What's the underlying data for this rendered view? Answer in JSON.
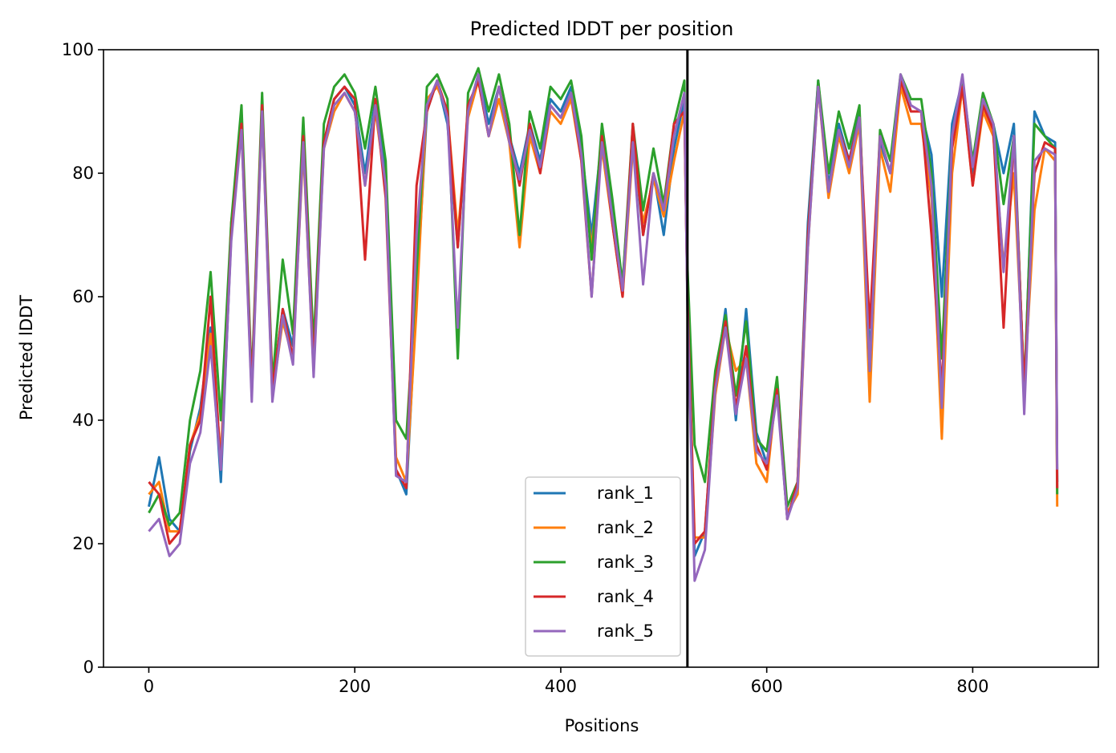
{
  "chart_data": {
    "type": "line",
    "title": "Predicted lDDT per position",
    "xlabel": "Positions",
    "ylabel": "Predicted lDDT",
    "xlim": [
      -44,
      922
    ],
    "ylim": [
      0,
      100
    ],
    "xticks": [
      0,
      200,
      400,
      600,
      800
    ],
    "yticks": [
      0,
      20,
      40,
      60,
      80,
      100
    ],
    "legend_position": "lower-center",
    "grid": false,
    "chain_break": 523,
    "x": [
      0,
      10,
      20,
      30,
      40,
      50,
      60,
      70,
      80,
      90,
      100,
      110,
      120,
      130,
      140,
      150,
      160,
      170,
      180,
      190,
      200,
      210,
      220,
      230,
      240,
      250,
      260,
      270,
      280,
      290,
      300,
      310,
      320,
      330,
      340,
      350,
      360,
      370,
      380,
      390,
      400,
      410,
      420,
      430,
      440,
      450,
      460,
      470,
      480,
      490,
      500,
      510,
      520,
      523,
      530,
      540,
      550,
      560,
      570,
      580,
      590,
      600,
      610,
      620,
      630,
      640,
      650,
      660,
      670,
      680,
      690,
      700,
      710,
      720,
      730,
      740,
      750,
      760,
      770,
      780,
      790,
      800,
      810,
      820,
      830,
      840,
      850,
      860,
      870,
      880,
      882
    ],
    "series": [
      {
        "name": "rank_1",
        "color": "#1f77b4",
        "values": [
          26,
          34,
          24,
          22,
          35,
          42,
          55,
          30,
          70,
          88,
          45,
          91,
          45,
          58,
          52,
          86,
          50,
          85,
          92,
          94,
          91,
          80,
          92,
          80,
          32,
          28,
          60,
          90,
          95,
          88,
          68,
          90,
          96,
          88,
          94,
          86,
          80,
          88,
          82,
          92,
          90,
          94,
          84,
          70,
          86,
          74,
          62,
          86,
          70,
          80,
          70,
          84,
          92,
          60,
          18,
          22,
          46,
          58,
          40,
          58,
          38,
          33,
          45,
          24,
          30,
          72,
          95,
          78,
          88,
          82,
          90,
          50,
          85,
          80,
          95,
          90,
          90,
          83,
          60,
          88,
          95,
          80,
          92,
          88,
          80,
          88,
          44,
          90,
          86,
          85,
          30
        ]
      },
      {
        "name": "rank_2",
        "color": "#ff7f0e",
        "values": [
          28,
          30,
          22,
          22,
          36,
          41,
          54,
          34,
          72,
          87,
          44,
          90,
          44,
          56,
          50,
          84,
          48,
          84,
          90,
          93,
          90,
          78,
          90,
          78,
          34,
          30,
          58,
          92,
          94,
          90,
          70,
          89,
          95,
          86,
          92,
          85,
          68,
          86,
          80,
          90,
          88,
          92,
          82,
          68,
          84,
          72,
          60,
          84,
          72,
          79,
          73,
          82,
          90,
          60,
          21,
          21,
          44,
          55,
          48,
          50,
          33,
          30,
          46,
          25,
          28,
          68,
          94,
          76,
          86,
          80,
          88,
          43,
          84,
          77,
          94,
          88,
          88,
          76,
          37,
          80,
          94,
          78,
          90,
          86,
          65,
          80,
          45,
          74,
          84,
          82,
          26
        ]
      },
      {
        "name": "rank_3",
        "color": "#2ca02c",
        "values": [
          25,
          28,
          23,
          25,
          40,
          48,
          64,
          40,
          72,
          91,
          46,
          93,
          46,
          66,
          54,
          89,
          52,
          88,
          94,
          96,
          93,
          84,
          94,
          82,
          40,
          37,
          64,
          94,
          96,
          92,
          50,
          93,
          97,
          90,
          96,
          88,
          70,
          90,
          84,
          94,
          92,
          95,
          86,
          66,
          88,
          76,
          62,
          88,
          74,
          84,
          75,
          88,
          95,
          65,
          36,
          30,
          48,
          57,
          44,
          56,
          37,
          35,
          47,
          26,
          30,
          70,
          95,
          80,
          90,
          84,
          91,
          48,
          87,
          82,
          96,
          92,
          92,
          80,
          50,
          86,
          95,
          82,
          93,
          88,
          75,
          86,
          45,
          88,
          86,
          84,
          28
        ]
      },
      {
        "name": "rank_4",
        "color": "#d62728",
        "values": [
          30,
          28,
          20,
          22,
          36,
          40,
          60,
          32,
          70,
          88,
          45,
          91,
          45,
          58,
          50,
          86,
          49,
          85,
          92,
          94,
          92,
          66,
          92,
          76,
          32,
          29,
          78,
          90,
          95,
          90,
          68,
          91,
          95,
          86,
          94,
          86,
          78,
          88,
          80,
          91,
          89,
          93,
          82,
          60,
          86,
          72,
          60,
          88,
          70,
          80,
          74,
          88,
          90,
          60,
          20,
          22,
          46,
          56,
          42,
          52,
          36,
          32,
          45,
          24,
          30,
          70,
          94,
          77,
          87,
          82,
          89,
          55,
          86,
          80,
          95,
          90,
          90,
          70,
          45,
          84,
          94,
          78,
          91,
          87,
          55,
          86,
          45,
          80,
          85,
          84,
          29
        ]
      },
      {
        "name": "rank_5",
        "color": "#9467bd",
        "values": [
          22,
          24,
          18,
          20,
          33,
          38,
          52,
          32,
          69,
          87,
          43,
          90,
          43,
          57,
          49,
          85,
          47,
          84,
          91,
          93,
          90,
          78,
          91,
          78,
          31,
          30,
          70,
          91,
          95,
          89,
          55,
          90,
          96,
          86,
          94,
          85,
          79,
          87,
          81,
          91,
          89,
          93,
          83,
          60,
          85,
          73,
          61,
          85,
          62,
          80,
          74,
          86,
          93,
          58,
          14,
          19,
          45,
          55,
          41,
          50,
          35,
          33,
          44,
          24,
          29,
          68,
          94,
          77,
          87,
          81,
          89,
          48,
          86,
          80,
          96,
          91,
          90,
          78,
          42,
          86,
          96,
          81,
          92,
          88,
          64,
          86,
          41,
          82,
          84,
          83,
          32
        ]
      }
    ]
  }
}
